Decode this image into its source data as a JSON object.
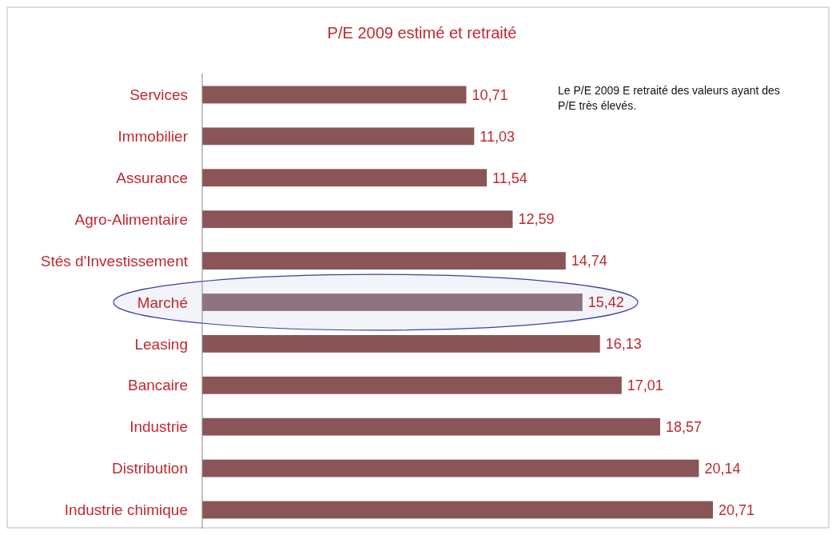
{
  "chart_data": {
    "type": "bar",
    "orientation": "horizontal",
    "title": "P/E 2009 estimé et retraité",
    "categories": [
      "Services",
      "Immobilier",
      "Assurance",
      "Agro-Alimentaire",
      "Stés d'Investissement",
      "Marché",
      "Leasing",
      "Bancaire",
      "Industrie",
      "Distribution",
      "Industrie chimique"
    ],
    "values": [
      10.71,
      11.03,
      11.54,
      12.59,
      14.74,
      15.42,
      16.13,
      17.01,
      18.57,
      20.14,
      20.71
    ],
    "value_labels": [
      "10,71",
      "11,03",
      "11,54",
      "12,59",
      "14,74",
      "15,42",
      "16,13",
      "17,01",
      "18,57",
      "20,14",
      "20,71"
    ],
    "colors": [
      "#8a5557",
      "#8a5557",
      "#8a5557",
      "#8a5557",
      "#8a5557",
      "#8d7480",
      "#8a5557",
      "#8a5557",
      "#8a5557",
      "#8a5557",
      "#8a5557"
    ],
    "annotations": [
      "Le P/E 2009 E retraité des valeurs ayant des P/E  très élevés."
    ]
  }
}
